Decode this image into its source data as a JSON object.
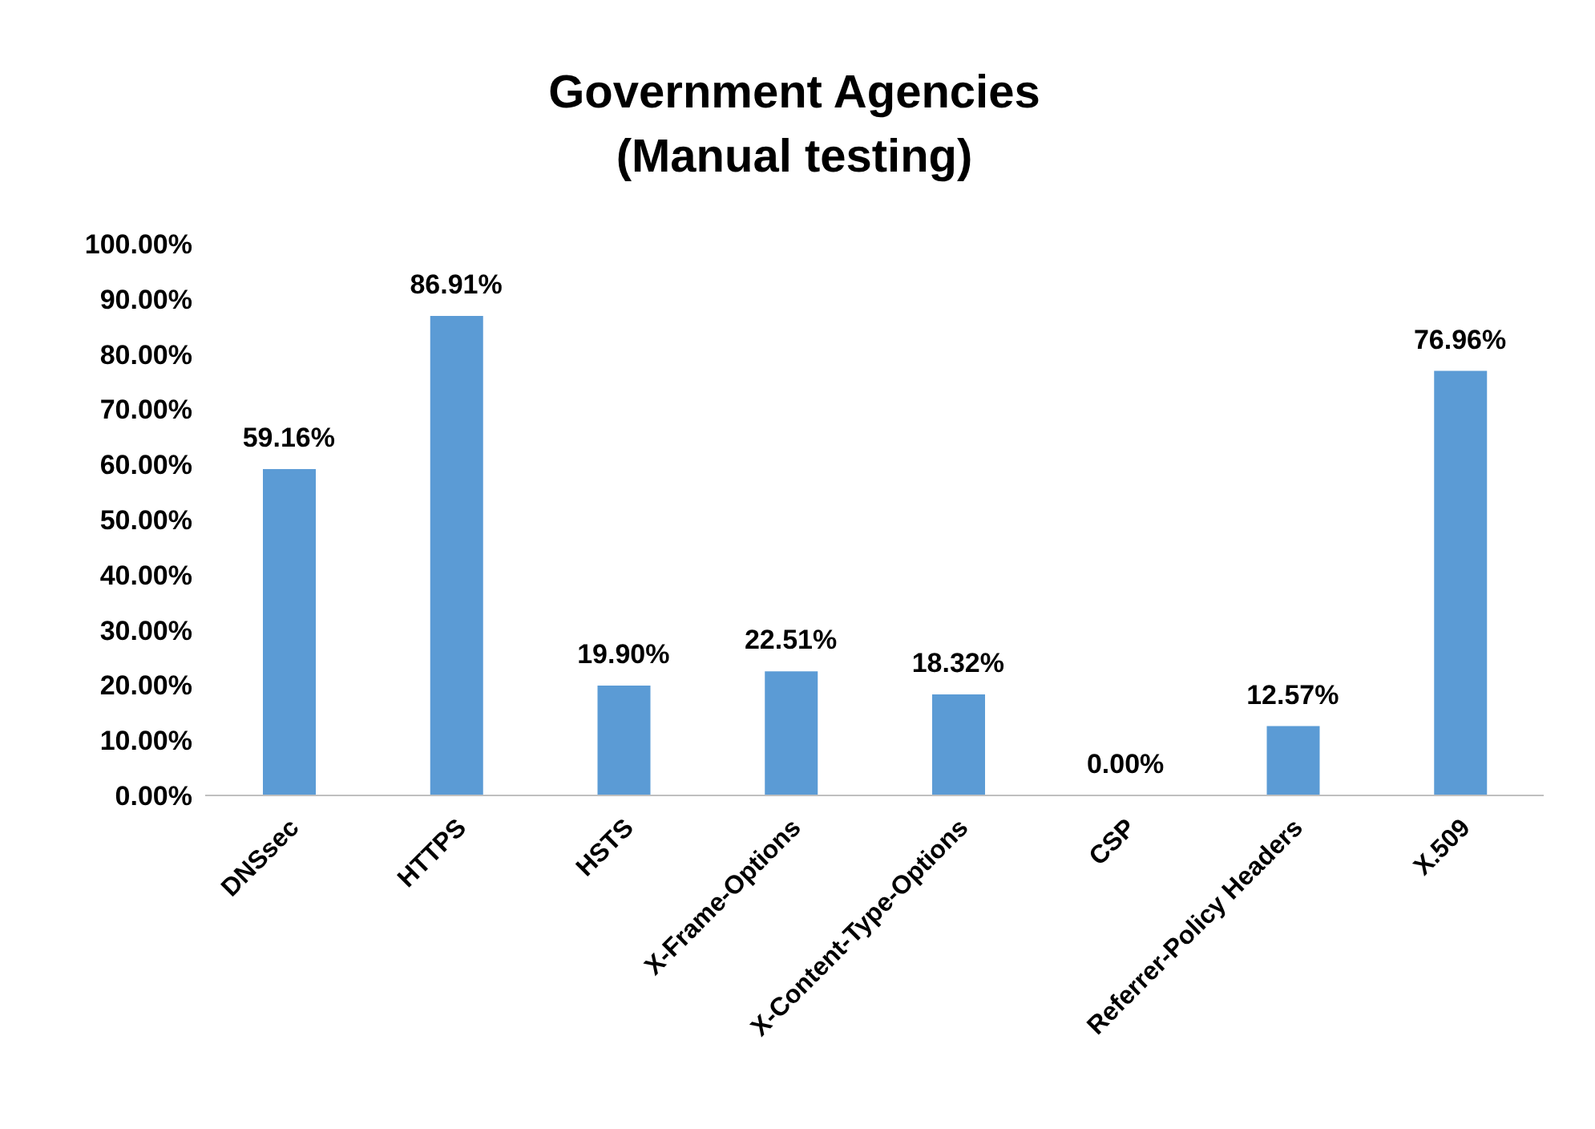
{
  "chart_data": {
    "type": "bar",
    "title": "Government Agencies\n(Manual testing)",
    "categories": [
      "DNSsec",
      "HTTPS",
      "HSTS",
      "X-Frame-Options",
      "X-Content-Type-Options",
      "CSP",
      "Referrer-Policy Headers",
      "X.509"
    ],
    "values": [
      59.16,
      86.91,
      19.9,
      22.51,
      18.32,
      0,
      12.57,
      76.96
    ],
    "value_labels": [
      "59.16%",
      "86.91%",
      "19.90%",
      "22.51%",
      "18.32%",
      "0.00%",
      "12.57%",
      "76.96%"
    ],
    "color": "#5b9bd5",
    "ylim": [
      0,
      100
    ],
    "yticks": [
      {
        "value": 0,
        "label": "0.00%"
      },
      {
        "value": 10,
        "label": "10.00%"
      },
      {
        "value": 20,
        "label": "20.00%"
      },
      {
        "value": 30,
        "label": "30.00%"
      },
      {
        "value": 40,
        "label": "40.00%"
      },
      {
        "value": 50,
        "label": "50.00%"
      },
      {
        "value": 60,
        "label": "60.00%"
      },
      {
        "value": 70,
        "label": "70.00%"
      },
      {
        "value": 80,
        "label": "80.00%"
      },
      {
        "value": 90,
        "label": "90.00%"
      },
      {
        "value": 100,
        "label": "100.00%"
      }
    ],
    "grid": false,
    "legend": false
  }
}
